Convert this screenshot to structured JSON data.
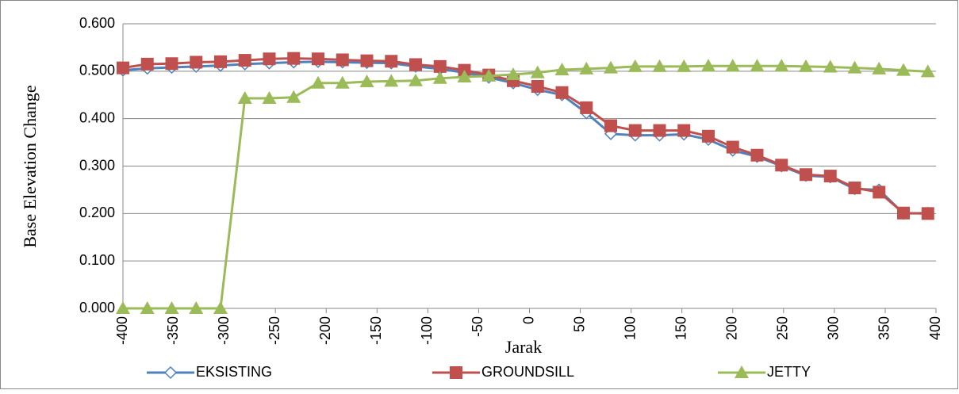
{
  "chart_data": {
    "type": "line",
    "y_label": "Base Elevation Change",
    "x_label": "Jarak",
    "x": [
      -400,
      -376,
      -352,
      -328,
      -304,
      -280,
      -256,
      -232,
      -208,
      -184,
      -160,
      -136,
      -112,
      -88,
      -64,
      -40,
      -16,
      8,
      32,
      56,
      80,
      104,
      128,
      152,
      176,
      200,
      224,
      248,
      272,
      296,
      320,
      344,
      368,
      392
    ],
    "series": [
      {
        "name": "EKSISTING",
        "color": "#4f81bd",
        "marker": "diamond",
        "values": [
          0.502,
          0.506,
          0.508,
          0.51,
          0.512,
          0.515,
          0.517,
          0.519,
          0.52,
          0.519,
          0.518,
          0.517,
          0.51,
          0.505,
          0.497,
          0.487,
          0.475,
          0.461,
          0.45,
          0.412,
          0.368,
          0.365,
          0.365,
          0.367,
          0.356,
          0.333,
          0.32,
          0.3,
          0.28,
          0.277,
          0.252,
          0.25,
          0.2,
          0.201
        ]
      },
      {
        "name": "GROUNDSILL",
        "color": "#c0504d",
        "marker": "square",
        "values": [
          0.507,
          0.515,
          0.516,
          0.519,
          0.52,
          0.523,
          0.526,
          0.527,
          0.526,
          0.524,
          0.522,
          0.521,
          0.514,
          0.51,
          0.502,
          0.492,
          0.48,
          0.468,
          0.455,
          0.423,
          0.385,
          0.375,
          0.375,
          0.375,
          0.363,
          0.34,
          0.323,
          0.302,
          0.282,
          0.279,
          0.254,
          0.245,
          0.201,
          0.2
        ]
      },
      {
        "name": "JETTY",
        "color": "#9bbb59",
        "marker": "triangle",
        "values": [
          0,
          0,
          0,
          0,
          0,
          0.443,
          0.443,
          0.445,
          0.475,
          0.475,
          0.478,
          0.479,
          0.48,
          0.485,
          0.488,
          0.49,
          0.493,
          0.497,
          0.503,
          0.505,
          0.507,
          0.51,
          0.51,
          0.51,
          0.511,
          0.511,
          0.511,
          0.511,
          0.51,
          0.509,
          0.507,
          0.505,
          0.502,
          0.499
        ]
      }
    ],
    "xlim": [
      -400,
      400
    ],
    "xticks": [
      -400,
      -350,
      -300,
      -250,
      -200,
      -150,
      -100,
      -50,
      0,
      50,
      100,
      150,
      200,
      250,
      300,
      350,
      400
    ],
    "ylim": [
      0,
      0.6
    ],
    "yticks": [
      {
        "value": 0,
        "label": "0.000"
      },
      {
        "value": 0.1,
        "label": "0.100"
      },
      {
        "value": 0.2,
        "label": "0.200"
      },
      {
        "value": 0.3,
        "label": "0.300"
      },
      {
        "value": 0.4,
        "label": "0.400"
      },
      {
        "value": 0.5,
        "label": "0.500"
      },
      {
        "value": 0.6,
        "label": "0.600"
      }
    ],
    "grid": true,
    "legend": "bottom"
  }
}
